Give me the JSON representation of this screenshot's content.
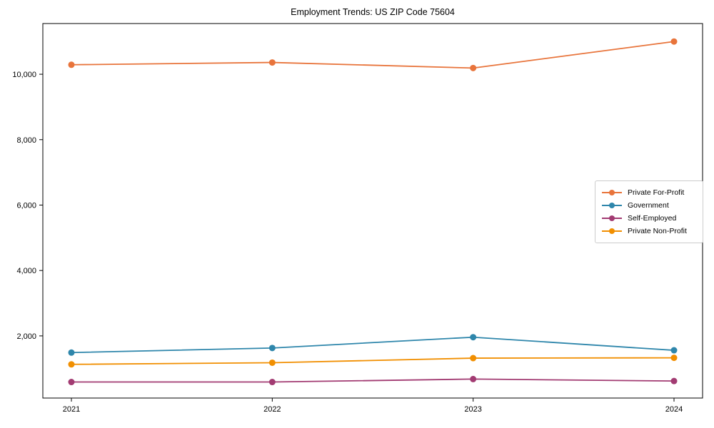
{
  "chart_data": {
    "type": "line",
    "title": "Employment Trends: US ZIP Code 75604",
    "xlabel": "",
    "ylabel": "",
    "x_labels": [
      "2021",
      "2022",
      "2023",
      "2024"
    ],
    "ylim": [
      100,
      11550
    ],
    "y_ticks": [
      2000,
      4000,
      6000,
      8000,
      10000
    ],
    "y_tick_labels": [
      "2,000",
      "4,000",
      "6,000",
      "8,000",
      "10,000"
    ],
    "grid": false,
    "legend_position": "center-right",
    "series": [
      {
        "name": "Private For-Profit",
        "color": "#E8743B",
        "values": [
          10290,
          10360,
          10190,
          11000
        ]
      },
      {
        "name": "Government",
        "color": "#2E86AB",
        "values": [
          1490,
          1630,
          1960,
          1560
        ]
      },
      {
        "name": "Self-Employed",
        "color": "#A23B72",
        "values": [
          590,
          590,
          680,
          620
        ]
      },
      {
        "name": "Private Non-Profit",
        "color": "#F18F01",
        "values": [
          1130,
          1180,
          1320,
          1330
        ]
      }
    ],
    "colors": {
      "axis": "#000000",
      "background": "#ffffff",
      "legend_border": "#cccccc"
    }
  }
}
